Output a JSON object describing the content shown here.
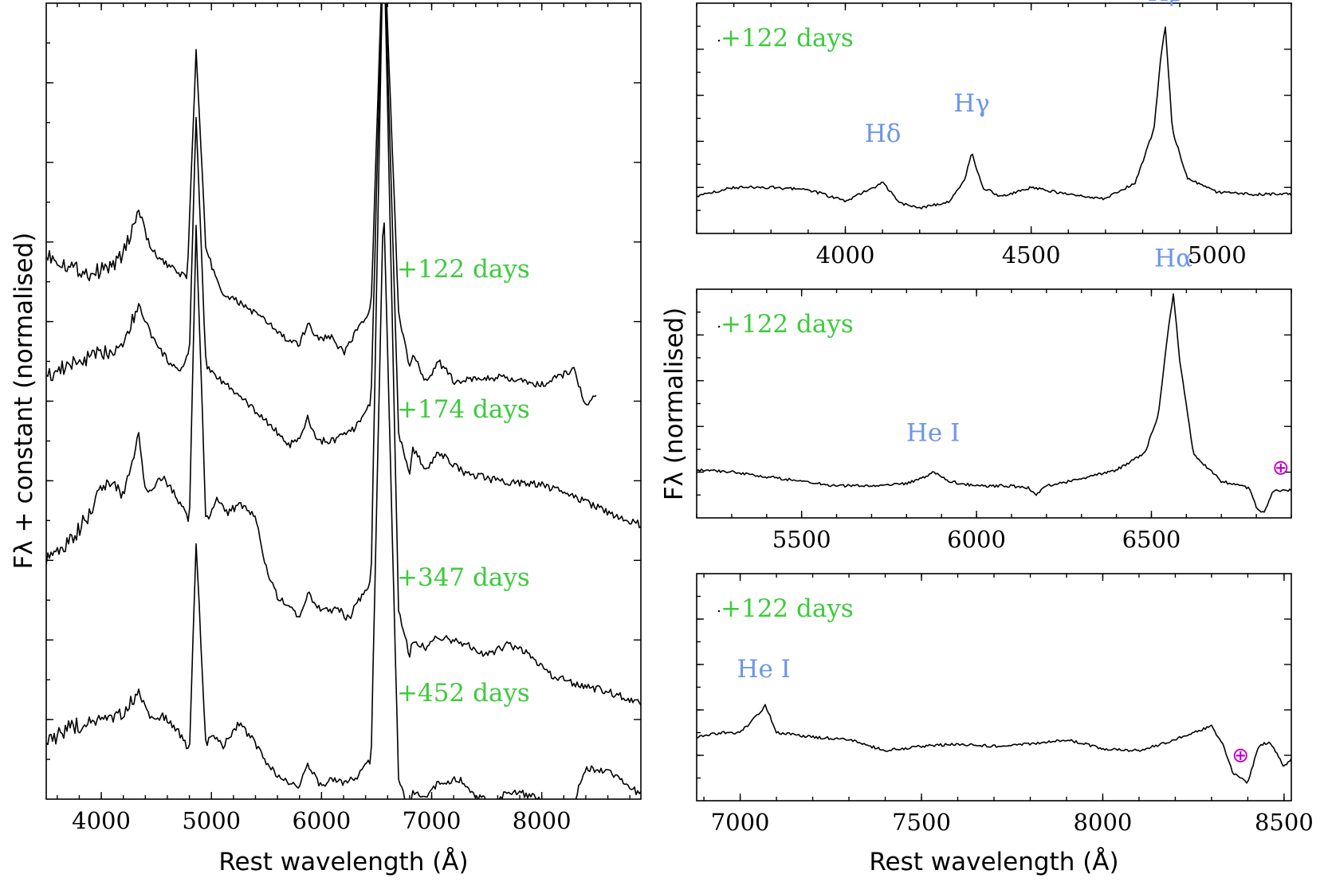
{
  "figure": {
    "left_xlabel": "Rest wavelength (Å)",
    "left_ylabel": "Fλ + constant (normalised)",
    "right_xlabel": "Rest wavelength (Å)",
    "right_ylabel": "Fλ (normalised)"
  },
  "chart_data": [
    {
      "type": "line",
      "title": "",
      "xlabel": "Rest wavelength (Å)",
      "ylabel": "Fλ + constant (normalised)",
      "xlim": [
        3500,
        8900
      ],
      "ylim": [
        0,
        10
      ],
      "xticks": [
        4000,
        5000,
        6000,
        7000,
        8000
      ],
      "tick_labels": [
        "4000",
        "5000",
        "6000",
        "7000",
        "8000"
      ],
      "series": [
        {
          "name": "+122 days",
          "label": "+122 days",
          "x": [
            3500,
            3700,
            3900,
            4100,
            4200,
            4340,
            4450,
            4600,
            4780,
            4861,
            4950,
            5100,
            5300,
            5500,
            5700,
            5800,
            5876,
            5950,
            6100,
            6200,
            6300,
            6450,
            6563,
            6700,
            6800,
            6830,
            6950,
            7065,
            7200,
            7600,
            8000,
            8300,
            8400,
            8500
          ],
          "values": [
            6.85,
            6.7,
            6.6,
            6.7,
            6.85,
            7.4,
            6.9,
            6.7,
            6.55,
            9.4,
            6.9,
            6.35,
            6.2,
            6.0,
            5.75,
            5.7,
            6.0,
            5.8,
            5.8,
            5.6,
            5.85,
            6.15,
            11.0,
            6.1,
            5.4,
            5.6,
            5.25,
            5.5,
            5.25,
            5.3,
            5.2,
            5.4,
            4.9,
            5.1
          ]
        },
        {
          "name": "+174 days",
          "label": "+174 days",
          "x": [
            3500,
            3700,
            3900,
            4100,
            4200,
            4340,
            4500,
            4700,
            4800,
            4861,
            4950,
            5100,
            5300,
            5500,
            5700,
            5800,
            5876,
            5950,
            6100,
            6300,
            6450,
            6563,
            6700,
            6800,
            6830,
            6950,
            7065,
            7300,
            7600,
            8000,
            8300,
            8600,
            8900
          ],
          "values": [
            5.3,
            5.45,
            5.55,
            5.65,
            5.75,
            6.2,
            5.7,
            5.35,
            5.6,
            8.6,
            5.45,
            5.25,
            5.0,
            4.75,
            4.45,
            4.5,
            4.8,
            4.5,
            4.5,
            4.65,
            5.0,
            11.0,
            4.6,
            4.05,
            4.4,
            4.15,
            4.35,
            4.1,
            4.0,
            3.95,
            3.8,
            3.6,
            3.45
          ]
        },
        {
          "name": "+347 days",
          "label": "+347 days",
          "x": [
            3500,
            3700,
            3900,
            4000,
            4100,
            4200,
            4340,
            4400,
            4560,
            4700,
            4800,
            4861,
            4950,
            5050,
            5150,
            5250,
            5400,
            5500,
            5600,
            5700,
            5800,
            5876,
            6000,
            6150,
            6250,
            6300,
            6450,
            6563,
            6700,
            6800,
            6830,
            6950,
            7050,
            7300,
            7500,
            7700,
            7900,
            8100,
            8300,
            8600,
            8900
          ],
          "values": [
            3.0,
            3.2,
            3.6,
            3.95,
            4.0,
            3.8,
            4.6,
            3.85,
            4.05,
            3.75,
            3.5,
            7.2,
            3.5,
            3.75,
            3.6,
            3.7,
            3.55,
            2.9,
            2.55,
            2.4,
            2.3,
            2.6,
            2.35,
            2.4,
            2.25,
            2.4,
            2.75,
            11.0,
            2.35,
            1.8,
            2.0,
            1.9,
            2.05,
            1.95,
            1.8,
            1.95,
            1.8,
            1.55,
            1.45,
            1.35,
            1.2
          ]
        },
        {
          "name": "+452 days",
          "label": "+452 days",
          "x": [
            3500,
            3700,
            3900,
            4100,
            4200,
            4340,
            4450,
            4560,
            4700,
            4800,
            4861,
            4950,
            5000,
            5100,
            5250,
            5400,
            5500,
            5600,
            5700,
            5800,
            5876,
            6000,
            6100,
            6200,
            6300,
            6450,
            6563,
            6700,
            6800,
            6830,
            6950,
            7050,
            7250,
            7400,
            7550,
            7700,
            7900,
            8100,
            8300,
            8400,
            8600,
            8900
          ],
          "values": [
            0.7,
            0.9,
            0.95,
            1.0,
            1.05,
            1.35,
            1.0,
            1.05,
            0.85,
            0.6,
            3.25,
            0.65,
            0.85,
            0.65,
            0.95,
            0.7,
            0.45,
            0.3,
            0.2,
            0.15,
            0.45,
            0.15,
            0.25,
            0.2,
            0.25,
            0.5,
            7.6,
            0.25,
            -0.15,
            0.1,
            0.0,
            0.2,
            0.25,
            0.05,
            -0.05,
            0.1,
            0.05,
            -0.1,
            0.0,
            0.4,
            0.35,
            0.05
          ]
        }
      ]
    },
    {
      "type": "line",
      "title": "",
      "xlabel": "",
      "ylabel": "",
      "xlim": [
        3600,
        5200
      ],
      "ylim": [
        0,
        1
      ],
      "xticks": [
        4000,
        4500,
        5000
      ],
      "tick_labels": [
        "4000",
        "4500",
        "5000"
      ],
      "epoch_label": "+122 days",
      "annotations": [
        {
          "text": "Hδ",
          "x": 4101
        },
        {
          "text": "Hγ",
          "x": 4340
        },
        {
          "text": "Hβ",
          "x": 4861
        }
      ],
      "series": [
        {
          "name": "+122 days",
          "x": [
            3600,
            3700,
            3800,
            3900,
            4000,
            4050,
            4100,
            4150,
            4200,
            4280,
            4320,
            4340,
            4370,
            4420,
            4500,
            4600,
            4700,
            4780,
            4830,
            4850,
            4861,
            4880,
            4920,
            5000,
            5100,
            5200
          ],
          "values": [
            0.16,
            0.2,
            0.2,
            0.19,
            0.14,
            0.18,
            0.22,
            0.13,
            0.11,
            0.14,
            0.23,
            0.35,
            0.2,
            0.16,
            0.2,
            0.17,
            0.15,
            0.22,
            0.45,
            0.78,
            0.9,
            0.45,
            0.24,
            0.18,
            0.17,
            0.17
          ]
        }
      ]
    },
    {
      "type": "line",
      "title": "",
      "xlabel": "",
      "ylabel": "Fλ (normalised)",
      "xlim": [
        5200,
        6900
      ],
      "ylim": [
        0,
        1
      ],
      "xticks": [
        5500,
        6000,
        6500
      ],
      "tick_labels": [
        "5500",
        "6000",
        "6500"
      ],
      "epoch_label": "+122 days",
      "annotations": [
        {
          "text": "He I",
          "x": 5876
        },
        {
          "text": "Hα",
          "x": 6563
        },
        {
          "text": "⊕",
          "x": 6870
        }
      ],
      "series": [
        {
          "name": "+122 days",
          "x": [
            5200,
            5300,
            5400,
            5500,
            5600,
            5700,
            5800,
            5850,
            5880,
            5920,
            6000,
            6100,
            6150,
            6170,
            6200,
            6300,
            6400,
            6480,
            6520,
            6550,
            6563,
            6580,
            6620,
            6700,
            6780,
            6800,
            6820,
            6850,
            6900
          ],
          "values": [
            0.21,
            0.2,
            0.18,
            0.16,
            0.14,
            0.14,
            0.15,
            0.18,
            0.2,
            0.16,
            0.14,
            0.14,
            0.13,
            0.1,
            0.14,
            0.17,
            0.21,
            0.28,
            0.45,
            0.85,
            0.98,
            0.7,
            0.28,
            0.16,
            0.13,
            0.05,
            0.02,
            0.12,
            0.12
          ]
        }
      ]
    },
    {
      "type": "line",
      "title": "",
      "xlabel": "Rest wavelength (Å)",
      "ylabel": "",
      "xlim": [
        6880,
        8520
      ],
      "ylim": [
        0,
        1
      ],
      "xticks": [
        7000,
        7500,
        8000,
        8500
      ],
      "tick_labels": [
        "7000",
        "7500",
        "8000",
        "8500"
      ],
      "epoch_label": "+122 days",
      "annotations": [
        {
          "text": "He I",
          "x": 7065
        },
        {
          "text": "⊕",
          "x": 8380
        }
      ],
      "series": [
        {
          "name": "+122 days",
          "x": [
            6880,
            6950,
            7000,
            7050,
            7070,
            7100,
            7200,
            7300,
            7400,
            7500,
            7600,
            7700,
            7800,
            7900,
            8000,
            8100,
            8200,
            8300,
            8330,
            8360,
            8400,
            8430,
            8460,
            8500,
            8520
          ],
          "values": [
            0.28,
            0.3,
            0.3,
            0.38,
            0.42,
            0.3,
            0.28,
            0.27,
            0.22,
            0.24,
            0.25,
            0.24,
            0.25,
            0.27,
            0.23,
            0.22,
            0.27,
            0.33,
            0.25,
            0.12,
            0.08,
            0.24,
            0.26,
            0.15,
            0.18
          ]
        }
      ]
    }
  ]
}
